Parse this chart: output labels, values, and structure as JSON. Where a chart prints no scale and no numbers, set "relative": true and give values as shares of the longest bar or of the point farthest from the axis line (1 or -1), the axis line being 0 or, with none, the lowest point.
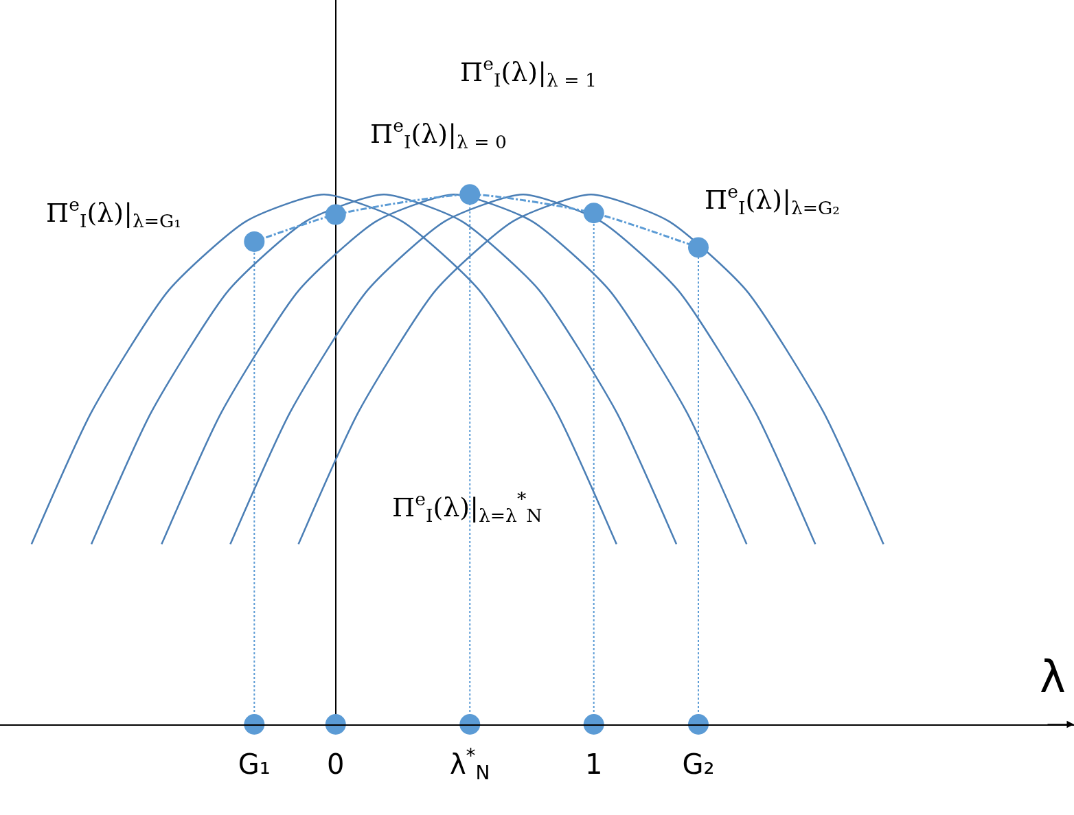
{
  "chart_data": {
    "type": "line",
    "relative": true,
    "xlabel": "λ",
    "xlim": [
      -1.3,
      2.86
    ],
    "xticks": [
      {
        "value": -0.315,
        "label": "G₁"
      },
      0,
      {
        "value": 0.52,
        "label": "λ$^{*}$$_{N}$"
      },
      1,
      {
        "value": 1.405,
        "label": "G₂"
      }
    ],
    "line_style": "solid",
    "marker": "none",
    "series": [
      {
        "color": "#4a7eb5",
        "x": [
          -1.178,
          -0.945,
          -0.645,
          -0.345,
          -0.045,
          0.255,
          0.555,
          0.855,
          1.088
        ],
        "values": [
          0.34,
          0.59,
          0.82,
          0.95,
          1.0,
          0.95,
          0.82,
          0.59,
          0.34
        ]
      },
      {
        "color": "#4a7eb5",
        "x": [
          -0.946,
          -0.713,
          -0.413,
          -0.113,
          0.187,
          0.487,
          0.787,
          1.087,
          1.32
        ],
        "values": [
          0.34,
          0.59,
          0.82,
          0.95,
          1.0,
          0.95,
          0.82,
          0.59,
          0.34
        ]
      },
      {
        "color": "#4a7eb5",
        "x": [
          -0.674,
          -0.441,
          -0.141,
          0.159,
          0.459,
          0.759,
          1.059,
          1.359,
          1.592
        ],
        "values": [
          0.34,
          0.59,
          0.82,
          0.95,
          1.0,
          0.95,
          0.82,
          0.59,
          0.34
        ]
      },
      {
        "color": "#4a7eb5",
        "x": [
          -0.408,
          -0.175,
          0.125,
          0.425,
          0.725,
          1.025,
          1.325,
          1.625,
          1.858
        ],
        "values": [
          0.34,
          0.59,
          0.82,
          0.95,
          1.0,
          0.95,
          0.82,
          0.59,
          0.34
        ]
      },
      {
        "color": "#4a7eb5",
        "x": [
          -0.144,
          0.089,
          0.389,
          0.689,
          0.989,
          1.289,
          1.589,
          1.889,
          2.122
        ],
        "values": [
          0.34,
          0.59,
          0.82,
          0.95,
          1.0,
          0.95,
          0.82,
          0.59,
          0.34
        ]
      },
      {
        "color": "#5b9bd5",
        "line_style": "dashed",
        "marker": "circle",
        "x": [
          -0.315,
          0,
          0.52,
          1,
          1.405
        ],
        "values": [
          0.911,
          0.962,
          1.0,
          0.965,
          0.9
        ]
      },
      {
        "color": "#5b9bd5",
        "type": "scatter",
        "marker": "circle",
        "x": [
          -0.315,
          0,
          0.52,
          1,
          1.405
        ],
        "values": [
          0,
          0,
          0,
          0,
          0
        ]
      }
    ],
    "ref_lines": [
      {
        "axis": "x",
        "value": -0.315,
        "color": "#5b9bd5",
        "line_style": "dotted"
      },
      {
        "axis": "x",
        "value": 0.52,
        "color": "#5b9bd5",
        "line_style": "dotted"
      },
      {
        "axis": "x",
        "value": 1,
        "color": "#5b9bd5",
        "line_style": "dotted"
      },
      {
        "axis": "x",
        "value": 1.405,
        "color": "#5b9bd5",
        "line_style": "dotted"
      }
    ],
    "annotations": [
      {
        "text": "Π$^{e}$$_{I}$(λ)|$_{λ=G₁}$",
        "x": -0.315,
        "y": 0.911
      },
      {
        "text": "Π$^{e}$$_{I}$(λ)|$_{λ = 0}$",
        "x": 0,
        "y": 0.962
      },
      "Π$^{e}$$_{I}$(λ)|$_{λ = 1}$",
      {
        "text": "Π$^{e}$$_{I}$(λ)|$_{λ=G₂}$",
        "x": 1.405,
        "y": 0.9
      },
      "Π$^{e}$$_{I}$(λ)|$_{λ=λ}$$^{*}$$_{N}$"
    ]
  }
}
